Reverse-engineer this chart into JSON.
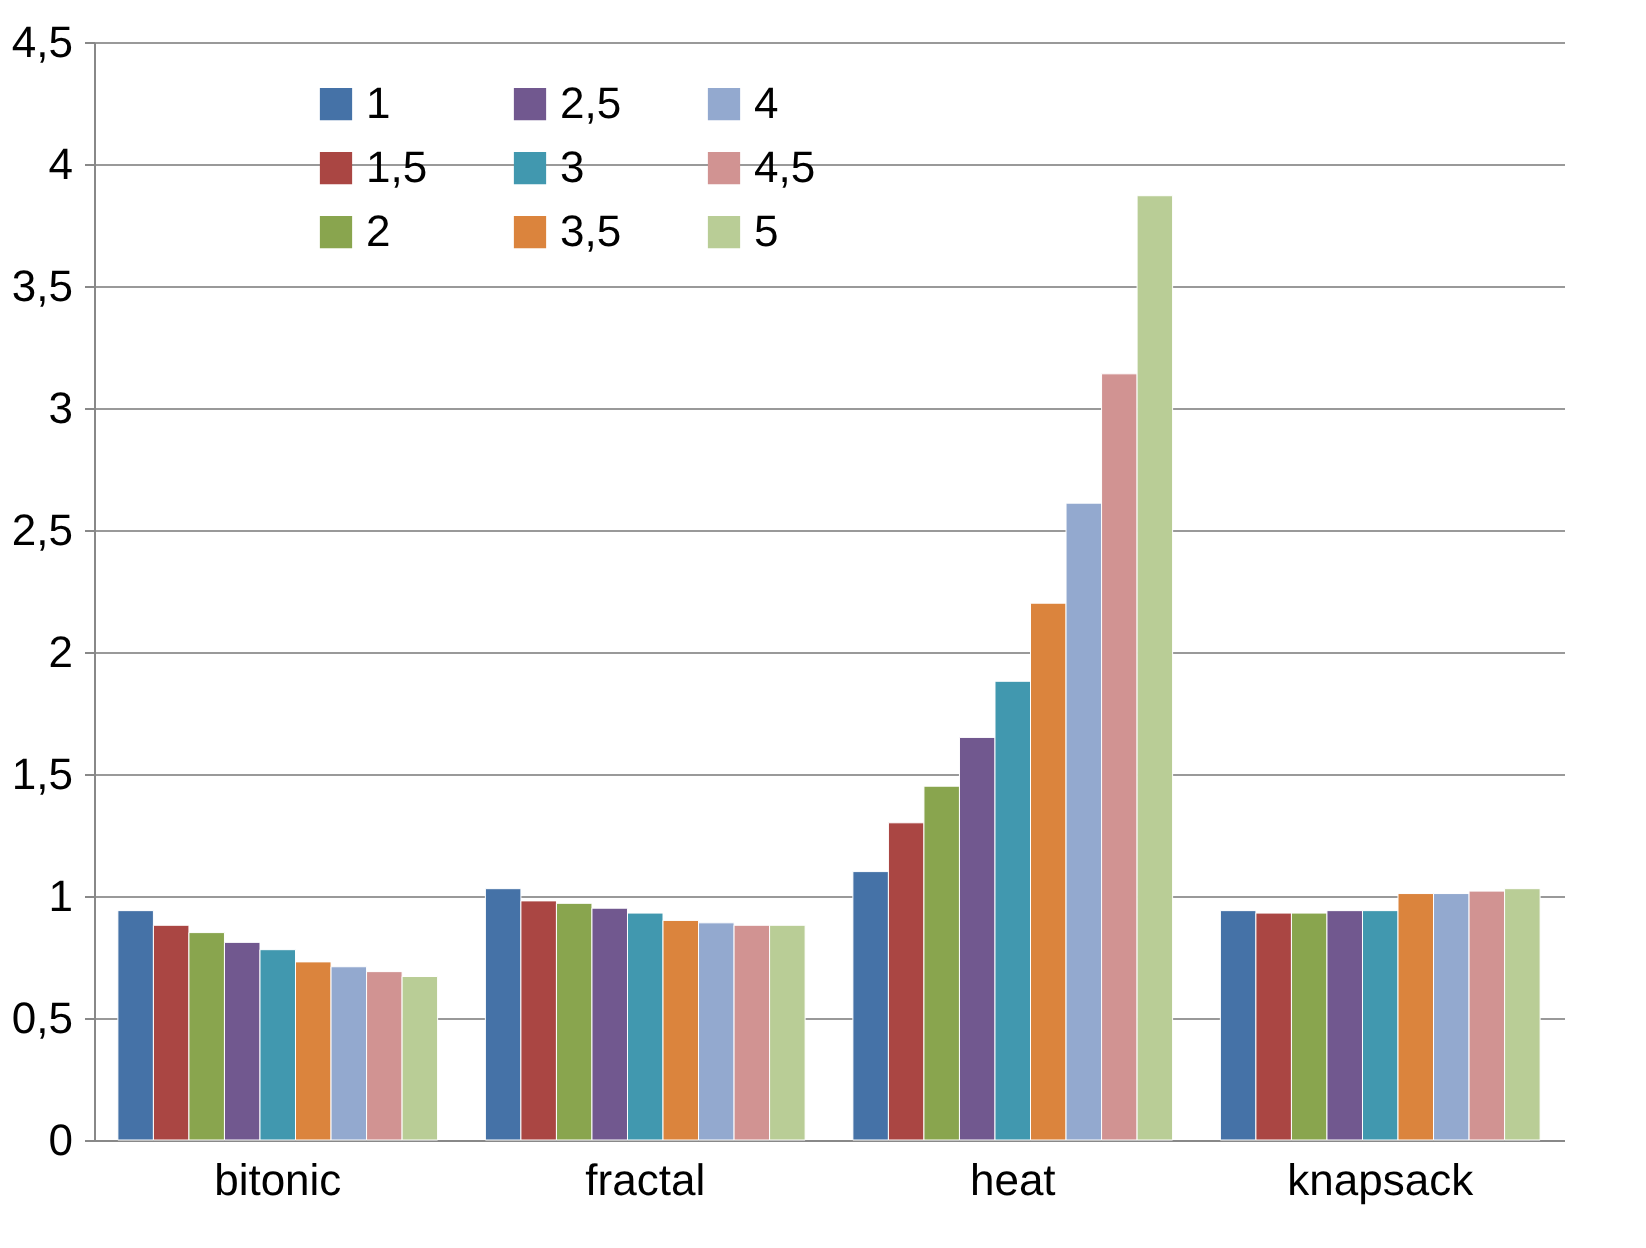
{
  "chart_data": {
    "type": "bar",
    "categories": [
      "bitonic",
      "fractal",
      "heat",
      "knapsack"
    ],
    "series": [
      {
        "name": "1",
        "color": "#4572a7",
        "values": [
          0.94,
          1.03,
          1.1,
          0.94
        ]
      },
      {
        "name": "1,5",
        "color": "#aa4643",
        "values": [
          0.88,
          0.98,
          1.3,
          0.93
        ]
      },
      {
        "name": "2",
        "color": "#89a54e",
        "values": [
          0.85,
          0.97,
          1.45,
          0.93
        ]
      },
      {
        "name": "2,5",
        "color": "#71588f",
        "values": [
          0.81,
          0.95,
          1.65,
          0.94
        ]
      },
      {
        "name": "3",
        "color": "#4198af",
        "values": [
          0.78,
          0.93,
          1.88,
          0.94
        ]
      },
      {
        "name": "3,5",
        "color": "#db843d",
        "values": [
          0.73,
          0.9,
          2.2,
          1.01
        ]
      },
      {
        "name": "4",
        "color": "#93a9cf",
        "values": [
          0.71,
          0.89,
          2.61,
          1.01
        ]
      },
      {
        "name": "4,5",
        "color": "#d19392",
        "values": [
          0.69,
          0.88,
          3.14,
          1.02
        ]
      },
      {
        "name": "5",
        "color": "#b9cd96",
        "values": [
          0.67,
          0.88,
          3.87,
          1.03
        ]
      }
    ],
    "ylim": [
      0,
      4.5
    ],
    "yticks": [
      0,
      {
        "value": 0.5,
        "label": "0,5"
      },
      1,
      {
        "value": 1.5,
        "label": "1,5"
      },
      2,
      {
        "value": 2.5,
        "label": "2,5"
      },
      3,
      {
        "value": 3.5,
        "label": "3,5"
      },
      4,
      {
        "value": 4.5,
        "label": "4,5"
      }
    ],
    "grid": "y",
    "legend": "top left"
  }
}
